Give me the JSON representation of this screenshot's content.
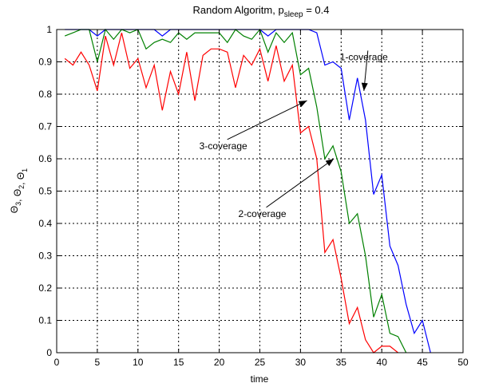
{
  "chart_data": {
    "type": "line",
    "title": "Random Algoritm, p",
    "title_subscript": "sleep",
    "title_suffix": " = 0.4",
    "xlabel": "time",
    "ylabel_parts": [
      {
        "text": "Θ",
        "sub": "3"
      },
      {
        "text": ", Θ",
        "sub": "2"
      },
      {
        "text": ", Θ",
        "sub": "1"
      }
    ],
    "xlim": [
      0,
      50
    ],
    "ylim": [
      0,
      1
    ],
    "xticks": [
      0,
      5,
      10,
      15,
      20,
      25,
      30,
      35,
      40,
      45,
      50
    ],
    "yticks": [
      0,
      0.1,
      0.2,
      0.3,
      0.4,
      0.5,
      0.6,
      0.7,
      0.8,
      0.9,
      1
    ],
    "grid": true,
    "series": [
      {
        "color": "#0000ff",
        "x": [
          1,
          2,
          3,
          4,
          5,
          6,
          7,
          8,
          9,
          10,
          11,
          12,
          13,
          14,
          15,
          16,
          17,
          18,
          19,
          20,
          21,
          22,
          23,
          24,
          25,
          26,
          27,
          28,
          29,
          30,
          31,
          32,
          33,
          34,
          35,
          36,
          37,
          38,
          39,
          40,
          41,
          42,
          43,
          44,
          45,
          46
        ],
        "values": [
          1,
          1,
          1,
          1,
          0.98,
          1,
          1,
          1,
          1,
          1,
          1,
          1,
          0.98,
          1,
          1,
          1,
          1,
          1,
          1,
          1,
          1,
          1,
          1,
          1,
          1,
          0.98,
          1,
          1,
          1,
          1,
          1,
          0.99,
          0.89,
          0.9,
          0.88,
          0.72,
          0.85,
          0.72,
          0.49,
          0.55,
          0.33,
          0.27,
          0.15,
          0.06,
          0.1,
          0
        ]
      },
      {
        "color": "#008000",
        "x": [
          1,
          2,
          3,
          4,
          5,
          6,
          7,
          8,
          9,
          10,
          11,
          12,
          13,
          14,
          15,
          16,
          17,
          18,
          19,
          20,
          21,
          22,
          23,
          24,
          25,
          26,
          27,
          28,
          29,
          30,
          31,
          32,
          33,
          34,
          35,
          36,
          37,
          38,
          39,
          40,
          41,
          42,
          43
        ],
        "values": [
          0.98,
          0.99,
          1,
          1,
          0.9,
          1,
          0.97,
          1,
          0.99,
          1,
          0.94,
          0.96,
          0.97,
          0.96,
          0.99,
          0.97,
          0.99,
          0.99,
          0.99,
          0.99,
          0.96,
          1,
          0.98,
          0.97,
          1,
          0.93,
          0.99,
          0.96,
          0.99,
          0.86,
          0.88,
          0.76,
          0.6,
          0.64,
          0.56,
          0.4,
          0.43,
          0.3,
          0.11,
          0.18,
          0.06,
          0.05,
          0
        ]
      },
      {
        "color": "#ff0000",
        "x": [
          1,
          2,
          3,
          4,
          5,
          6,
          7,
          8,
          9,
          10,
          11,
          12,
          13,
          14,
          15,
          16,
          17,
          18,
          19,
          20,
          21,
          22,
          23,
          24,
          25,
          26,
          27,
          28,
          29,
          30,
          31,
          32,
          33,
          34,
          35,
          36,
          37,
          38,
          39,
          40,
          41,
          42
        ],
        "values": [
          0.91,
          0.89,
          0.93,
          0.89,
          0.81,
          0.98,
          0.89,
          0.99,
          0.88,
          0.91,
          0.82,
          0.89,
          0.75,
          0.87,
          0.8,
          0.93,
          0.78,
          0.92,
          0.94,
          0.94,
          0.93,
          0.82,
          0.92,
          0.89,
          0.94,
          0.84,
          0.95,
          0.84,
          0.89,
          0.68,
          0.7,
          0.6,
          0.31,
          0.35,
          0.23,
          0.09,
          0.14,
          0.04,
          0,
          0.02,
          0.02,
          0
        ]
      }
    ],
    "annotations": [
      {
        "text": "1-coverage",
        "text_x": 37.8,
        "text_y": 0.915,
        "arrow_to": [
          37.8,
          0.81
        ]
      },
      {
        "text": "3-coverage",
        "text_x": 20.5,
        "text_y": 0.64,
        "arrow_to": [
          30.8,
          0.78
        ]
      },
      {
        "text": "2-coverage",
        "text_x": 25.3,
        "text_y": 0.43,
        "arrow_to": [
          34.1,
          0.6
        ]
      }
    ]
  }
}
